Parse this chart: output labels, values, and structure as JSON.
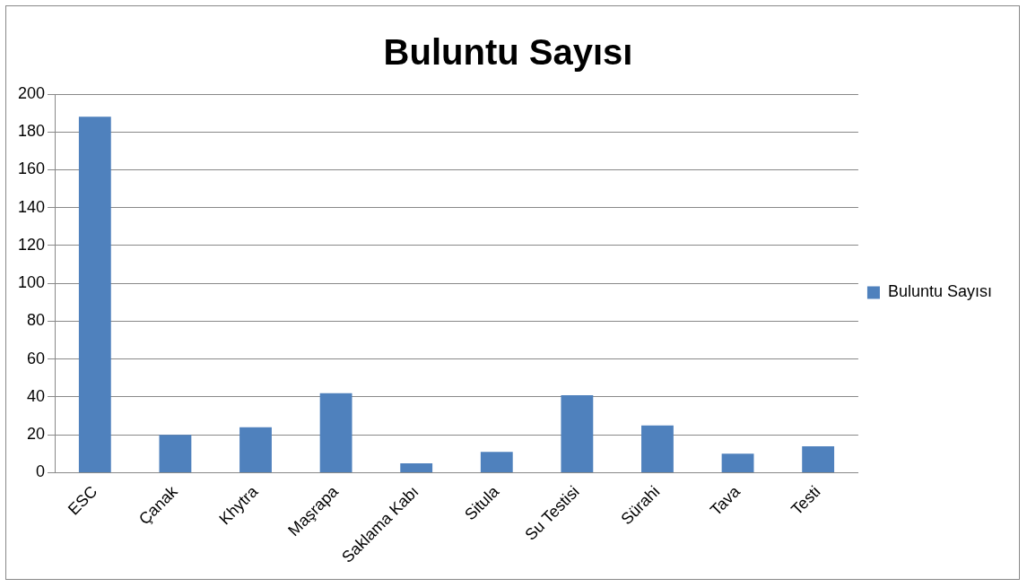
{
  "chart_data": {
    "type": "bar",
    "title": "Buluntu Sayısı",
    "categories": [
      "ESC",
      "Çanak",
      "Khytra",
      "Maşrapa",
      "Saklama Kabı",
      "Situla",
      "Su Testisi",
      "Sürahi",
      "Tava",
      "Testi"
    ],
    "series": [
      {
        "name": "Buluntu Sayısı",
        "color": "#4f81bd",
        "values": [
          188,
          20,
          24,
          42,
          5,
          11,
          41,
          25,
          10,
          14
        ]
      }
    ],
    "ylim": [
      0,
      200
    ],
    "yticks": [
      0,
      20,
      40,
      60,
      80,
      100,
      120,
      140,
      160,
      180,
      200
    ],
    "grid": "y",
    "legend": "right"
  }
}
